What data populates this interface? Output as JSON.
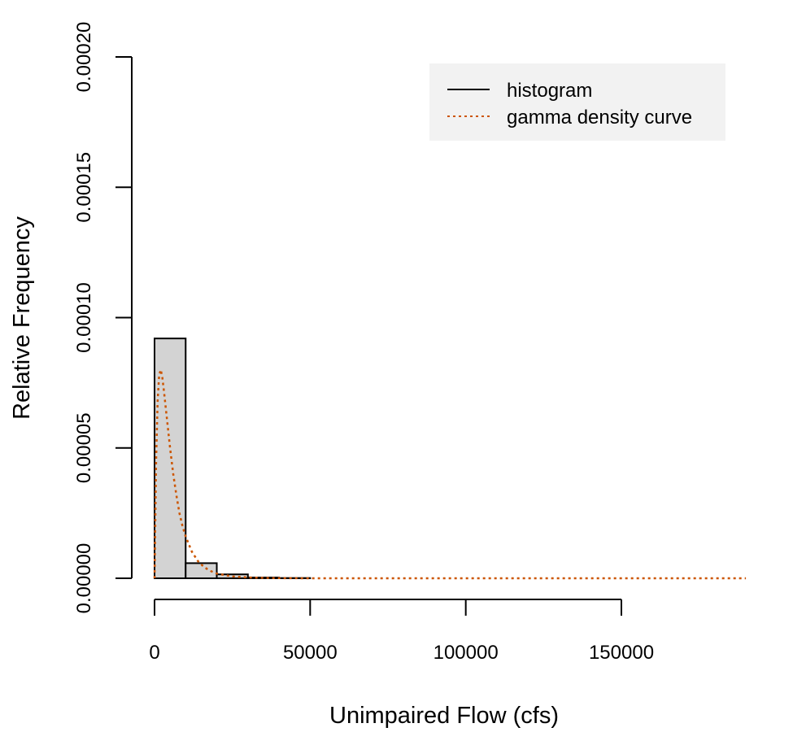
{
  "chart_data": {
    "type": "bar",
    "title": "",
    "xlabel": "Unimpaired Flow (cfs)",
    "ylabel": "Relative Frequency",
    "xlim": [
      0,
      190000
    ],
    "ylim": [
      0,
      0.0002
    ],
    "x_ticks": [
      0,
      50000,
      100000,
      150000
    ],
    "x_tick_labels": [
      "0",
      "50000",
      "100000",
      "150000"
    ],
    "y_ticks": [
      0,
      5e-05,
      0.0001,
      0.00015,
      0.0002
    ],
    "y_tick_labels": [
      "0.00000",
      "0.00005",
      "0.00010",
      "0.00015",
      "0.00020"
    ],
    "grid": false,
    "legend_position": "top-right",
    "histogram": {
      "bin_edges": [
        0,
        10000,
        20000,
        30000,
        40000,
        50000,
        60000,
        70000,
        80000,
        90000,
        100000,
        110000,
        120000,
        130000,
        140000,
        150000,
        160000,
        170000,
        180000,
        190000
      ],
      "values": [
        9.2e-05,
        5.8e-06,
        1.5e-06,
        3e-07,
        1e-07,
        0,
        0,
        0,
        0,
        0,
        0,
        0,
        0,
        0,
        0,
        0,
        0,
        0,
        0
      ],
      "fill": "#d3d3d3",
      "stroke": "#000000"
    },
    "density_curve": {
      "x": [
        0,
        500,
        1000,
        1500,
        2000,
        2500,
        3000,
        4000,
        5000,
        6000,
        7000,
        8000,
        9000,
        10000,
        12000,
        14000,
        16000,
        18000,
        20000,
        25000,
        30000,
        35000,
        40000,
        45000,
        50000,
        60000,
        80000,
        100000,
        150000,
        190000
      ],
      "y": [
        0,
        4.5e-05,
        6.8e-05,
        7.8e-05,
        8e-05,
        7.7e-05,
        7.2e-05,
        6.1e-05,
        5e-05,
        4e-05,
        3.2e-05,
        2.5e-05,
        2e-05,
        1.6e-05,
        1.02e-05,
        6.5e-06,
        4.2e-06,
        2.8e-06,
        1.8e-06,
        7e-07,
        3e-07,
        1.5e-07,
        7e-08,
        3e-08,
        1e-08,
        0,
        0,
        0,
        0,
        0
      ],
      "color": "#cc5500"
    },
    "legend": [
      {
        "label": "histogram",
        "color": "#000000",
        "style": "solid"
      },
      {
        "label": "gamma density curve",
        "color": "#cc5500",
        "style": "dotted"
      }
    ]
  }
}
